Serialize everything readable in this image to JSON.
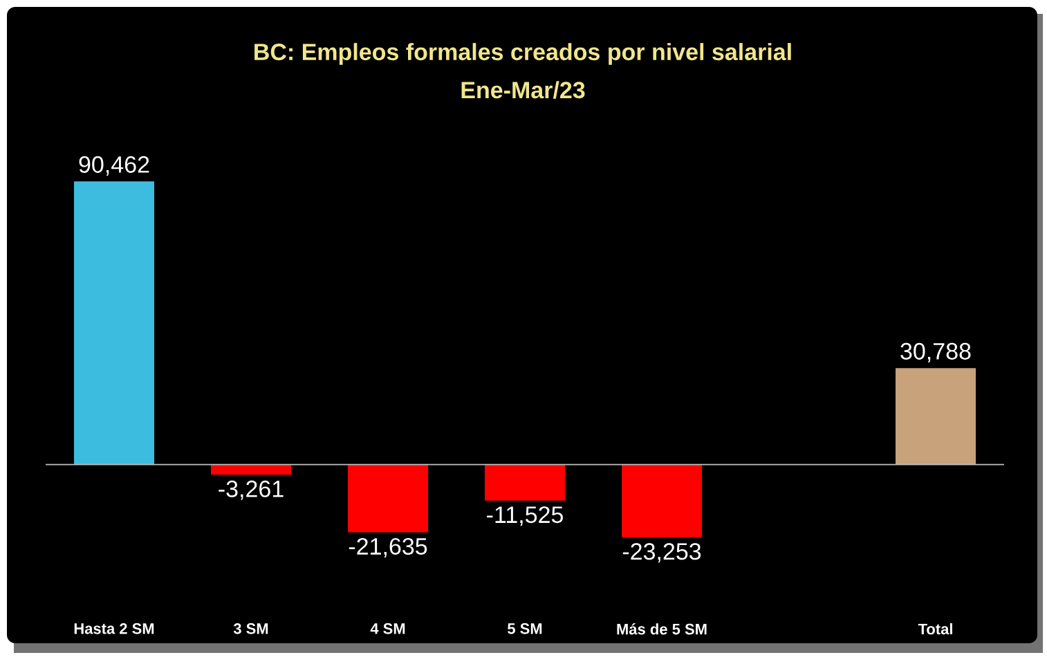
{
  "chart_data": {
    "type": "bar",
    "title": "BC: Empleos formales creados por nivel salarial",
    "subtitle": "Ene-Mar/23",
    "categories": [
      "Hasta 2 SM",
      "3 SM",
      "4 SM",
      "5 SM",
      "Más de 5 SM",
      null,
      "Total"
    ],
    "values": [
      90462,
      -3261,
      -21635,
      -11525,
      -23253,
      null,
      30788
    ],
    "colors": [
      "#3cbde0",
      "#ff0000",
      "#ff0000",
      "#ff0000",
      "#ff0000",
      null,
      "#c8a27a"
    ],
    "value_labels": [
      "90,462",
      "-3,261",
      "-21,635",
      "-11,525",
      "-23,253",
      null,
      "30,788"
    ]
  }
}
